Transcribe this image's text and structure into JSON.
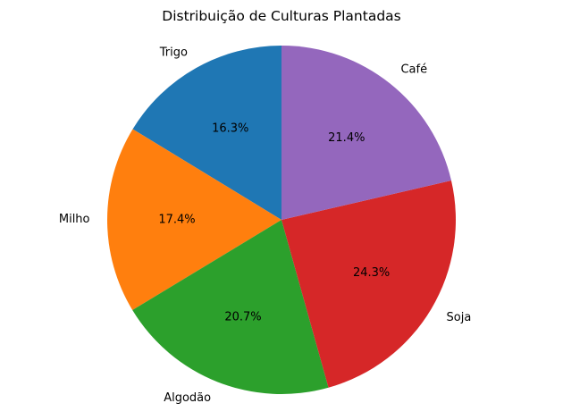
{
  "chart_data": {
    "type": "pie",
    "title": "Distribuição de Culturas Plantadas",
    "start_angle_deg": 90,
    "direction": "counterclockwise",
    "slices": [
      {
        "label": "Trigo",
        "percent": 16.3,
        "percent_label": "16.3%",
        "color": "#1f77b4"
      },
      {
        "label": "Milho",
        "percent": 17.4,
        "percent_label": "17.4%",
        "color": "#ff7f0e"
      },
      {
        "label": "Algodão",
        "percent": 20.7,
        "percent_label": "20.7%",
        "color": "#2ca02c"
      },
      {
        "label": "Soja",
        "percent": 24.3,
        "percent_label": "24.3%",
        "color": "#d62728"
      },
      {
        "label": "Café",
        "percent": 21.4,
        "percent_label": "21.4%",
        "color": "#9467bd"
      }
    ]
  }
}
